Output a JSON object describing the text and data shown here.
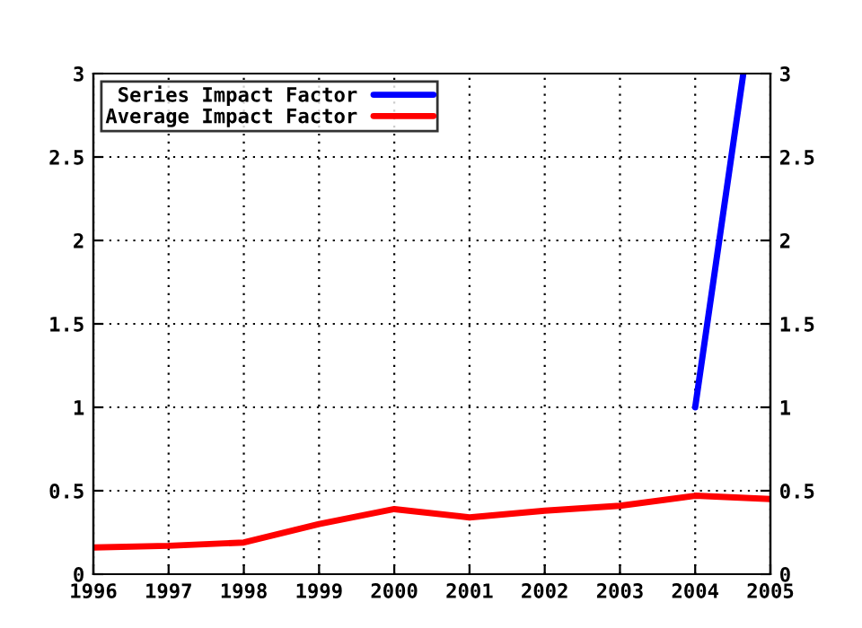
{
  "chart_data": {
    "type": "line",
    "x": [
      1996,
      1997,
      1998,
      1999,
      2000,
      2001,
      2002,
      2003,
      2004,
      2005
    ],
    "series": [
      {
        "name": "Series Impact Factor",
        "color": "#0000ff",
        "x": [
          2004,
          2004.64
        ],
        "values": [
          1,
          3
        ]
      },
      {
        "name": "Average Impact Factor",
        "color": "#ff0000",
        "values": [
          0.16,
          0.17,
          0.19,
          0.3,
          0.39,
          0.34,
          0.38,
          0.41,
          0.47,
          0.45
        ]
      }
    ],
    "xlim": [
      1996,
      2005
    ],
    "xticks": [
      1996,
      1997,
      1998,
      1999,
      2000,
      2001,
      2002,
      2003,
      2004,
      2005
    ],
    "ylim": [
      0,
      3
    ],
    "yticks": [
      0,
      0.5,
      1,
      1.5,
      2,
      2.5,
      3
    ],
    "y2lim": [
      0,
      3
    ],
    "y2ticks": [
      0,
      0.5,
      1,
      1.5,
      2,
      2.5,
      3
    ],
    "grid": true,
    "legend": "top left",
    "line_style": "solid",
    "marker": "none"
  }
}
